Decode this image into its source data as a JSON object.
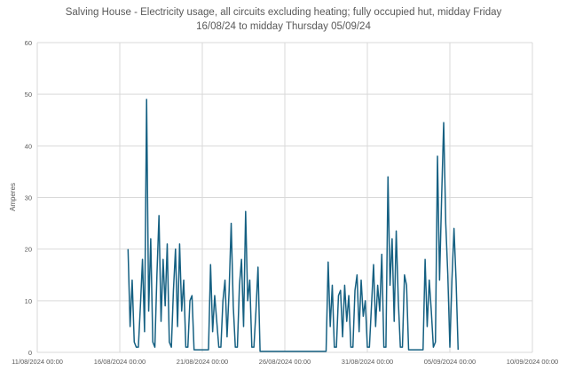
{
  "chart_data": {
    "type": "line",
    "title": "Salving House - Electricity usage, all circuits excluding heating; fully occupied hut, midday Friday\n16/08/24 to midday Thursday 05/09/24",
    "y_label": "Amperes",
    "color": "#156082",
    "grid": true,
    "xlim": [
      "11/08/2024 00:00",
      "10/09/2024 00:00"
    ],
    "xticks": [
      "11/08/2024 00:00",
      "16/08/2024 00:00",
      "21/08/2024 00:00",
      "26/08/2024 00:00",
      "31/08/2024 00:00",
      "05/09/2024 00:00",
      "10/09/2024 00:00"
    ],
    "ylim": [
      0,
      60
    ],
    "yticks": [
      0,
      10,
      20,
      30,
      40,
      50,
      60
    ],
    "x": [
      "16/08/2024 12:00",
      "16/08/2024 15:00",
      "16/08/2024 18:00",
      "16/08/2024 21:00",
      "17/08/2024 00:00",
      "17/08/2024 03:00",
      "17/08/2024 06:00",
      "17/08/2024 09:00",
      "17/08/2024 12:00",
      "17/08/2024 15:00",
      "17/08/2024 18:00",
      "17/08/2024 21:00",
      "18/08/2024 00:00",
      "18/08/2024 03:00",
      "18/08/2024 06:00",
      "18/08/2024 09:00",
      "18/08/2024 12:00",
      "18/08/2024 15:00",
      "18/08/2024 18:00",
      "18/08/2024 21:00",
      "19/08/2024 00:00",
      "19/08/2024 03:00",
      "19/08/2024 06:00",
      "19/08/2024 09:00",
      "19/08/2024 12:00",
      "19/08/2024 15:00",
      "19/08/2024 18:00",
      "19/08/2024 21:00",
      "20/08/2024 00:00",
      "20/08/2024 03:00",
      "20/08/2024 06:00",
      "20/08/2024 09:00",
      "20/08/2024 12:00",
      "21/08/2024 09:00",
      "21/08/2024 12:00",
      "21/08/2024 15:00",
      "21/08/2024 18:00",
      "21/08/2024 21:00",
      "22/08/2024 00:00",
      "22/08/2024 03:00",
      "22/08/2024 06:00",
      "22/08/2024 09:00",
      "22/08/2024 12:00",
      "22/08/2024 15:00",
      "22/08/2024 18:00",
      "22/08/2024 21:00",
      "23/08/2024 00:00",
      "23/08/2024 03:00",
      "23/08/2024 06:00",
      "23/08/2024 09:00",
      "23/08/2024 12:00",
      "23/08/2024 15:00",
      "23/08/2024 18:00",
      "23/08/2024 21:00",
      "24/08/2024 00:00",
      "24/08/2024 03:00",
      "24/08/2024 06:00",
      "24/08/2024 09:00",
      "24/08/2024 12:00",
      "28/08/2024 12:00",
      "28/08/2024 15:00",
      "28/08/2024 18:00",
      "28/08/2024 21:00",
      "29/08/2024 00:00",
      "29/08/2024 03:00",
      "29/08/2024 06:00",
      "29/08/2024 09:00",
      "29/08/2024 12:00",
      "29/08/2024 15:00",
      "29/08/2024 18:00",
      "29/08/2024 21:00",
      "30/08/2024 00:00",
      "30/08/2024 03:00",
      "30/08/2024 06:00",
      "30/08/2024 09:00",
      "30/08/2024 12:00",
      "30/08/2024 15:00",
      "30/08/2024 18:00",
      "30/08/2024 21:00",
      "31/08/2024 00:00",
      "31/08/2024 03:00",
      "31/08/2024 06:00",
      "31/08/2024 09:00",
      "31/08/2024 12:00",
      "31/08/2024 15:00",
      "31/08/2024 18:00",
      "31/08/2024 21:00",
      "01/09/2024 00:00",
      "01/09/2024 03:00",
      "01/09/2024 06:00",
      "01/09/2024 09:00",
      "01/09/2024 12:00",
      "01/09/2024 15:00",
      "01/09/2024 18:00",
      "01/09/2024 21:00",
      "02/09/2024 00:00",
      "02/09/2024 03:00",
      "02/09/2024 06:00",
      "02/09/2024 09:00",
      "02/09/2024 12:00",
      "03/09/2024 09:00",
      "03/09/2024 12:00",
      "03/09/2024 15:00",
      "03/09/2024 18:00",
      "03/09/2024 21:00",
      "04/09/2024 00:00",
      "04/09/2024 03:00",
      "04/09/2024 06:00",
      "04/09/2024 09:00",
      "04/09/2024 12:00",
      "04/09/2024 15:00",
      "04/09/2024 18:00",
      "04/09/2024 21:00",
      "05/09/2024 00:00",
      "05/09/2024 03:00",
      "05/09/2024 06:00",
      "05/09/2024 09:00",
      "05/09/2024 12:00"
    ],
    "values": [
      20,
      5,
      14,
      2,
      1,
      1,
      9,
      18,
      4,
      49,
      8,
      22,
      2,
      1,
      15,
      26.5,
      6,
      18,
      9,
      21,
      2,
      1,
      12,
      20,
      5,
      21,
      8,
      14,
      1,
      1,
      10,
      11,
      0.5,
      0.5,
      17,
      4,
      11,
      6,
      1,
      1,
      10,
      14,
      3,
      12,
      25,
      9,
      1,
      1,
      13,
      18,
      5,
      27.3,
      10,
      14,
      1,
      1,
      8,
      16.5,
      0.2,
      0.2,
      17.5,
      5,
      13,
      1,
      1,
      11,
      12,
      3,
      13,
      6,
      11,
      1,
      1,
      12,
      15,
      4,
      14,
      7,
      10,
      1,
      1,
      9,
      17,
      5,
      13,
      8,
      19,
      1,
      1,
      34,
      13,
      22,
      6,
      23.5,
      10,
      1,
      1,
      15,
      13,
      0.5,
      0.5,
      18,
      5,
      14,
      8,
      1,
      2,
      38,
      14,
      30,
      44.5,
      25,
      15,
      1,
      14,
      24,
      14,
      0.5
    ]
  }
}
